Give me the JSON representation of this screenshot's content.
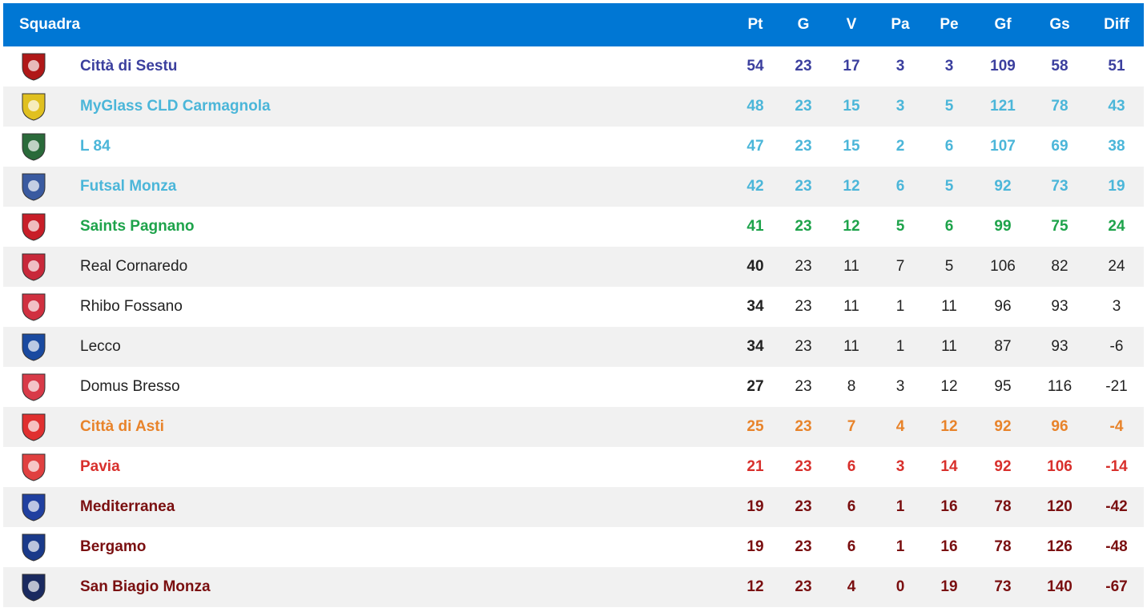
{
  "table": {
    "header": [
      "Squadra",
      "Pt",
      "G",
      "V",
      "Pa",
      "Pe",
      "Gf",
      "Gs",
      "Diff"
    ],
    "header_color": "#0077d4",
    "rows": [
      {
        "team": "Città di Sestu",
        "color": "#3b3f9e",
        "bold": true,
        "stats": [
          54,
          23,
          17,
          3,
          3,
          109,
          58,
          51
        ]
      },
      {
        "team": "MyGlass CLD Carmagnola",
        "color": "#4bb6d9",
        "bold": true,
        "stats": [
          48,
          23,
          15,
          3,
          5,
          121,
          78,
          43
        ]
      },
      {
        "team": "L 84",
        "color": "#4bb6d9",
        "bold": true,
        "stats": [
          47,
          23,
          15,
          2,
          6,
          107,
          69,
          38
        ]
      },
      {
        "team": "Futsal Monza",
        "color": "#4bb6d9",
        "bold": true,
        "stats": [
          42,
          23,
          12,
          6,
          5,
          92,
          73,
          19
        ]
      },
      {
        "team": "Saints Pagnano",
        "color": "#1ea34b",
        "bold": true,
        "stats": [
          41,
          23,
          12,
          5,
          6,
          99,
          75,
          24
        ]
      },
      {
        "team": "Real Cornaredo",
        "color": "#222222",
        "bold": false,
        "stats": [
          40,
          23,
          11,
          7,
          5,
          106,
          82,
          24
        ]
      },
      {
        "team": "Rhibo Fossano",
        "color": "#222222",
        "bold": false,
        "stats": [
          34,
          23,
          11,
          1,
          11,
          96,
          93,
          3
        ]
      },
      {
        "team": "Lecco",
        "color": "#222222",
        "bold": false,
        "stats": [
          34,
          23,
          11,
          1,
          11,
          87,
          93,
          -6
        ]
      },
      {
        "team": "Domus Bresso",
        "color": "#222222",
        "bold": false,
        "stats": [
          27,
          23,
          8,
          3,
          12,
          95,
          116,
          -21
        ]
      },
      {
        "team": "Città di Asti",
        "color": "#e8832a",
        "bold": true,
        "stats": [
          25,
          23,
          7,
          4,
          12,
          92,
          96,
          -4
        ]
      },
      {
        "team": "Pavia",
        "color": "#d8302c",
        "bold": true,
        "stats": [
          21,
          23,
          6,
          3,
          14,
          92,
          106,
          -14
        ]
      },
      {
        "team": "Mediterranea",
        "color": "#7a0f10",
        "bold": true,
        "stats": [
          19,
          23,
          6,
          1,
          16,
          78,
          120,
          -42
        ]
      },
      {
        "team": "Bergamo",
        "color": "#7a0f10",
        "bold": true,
        "stats": [
          19,
          23,
          6,
          1,
          16,
          78,
          126,
          -48
        ]
      },
      {
        "team": "San Biagio Monza",
        "color": "#7a0f10",
        "bold": true,
        "stats": [
          12,
          23,
          4,
          0,
          19,
          73,
          140,
          -67
        ]
      }
    ]
  }
}
